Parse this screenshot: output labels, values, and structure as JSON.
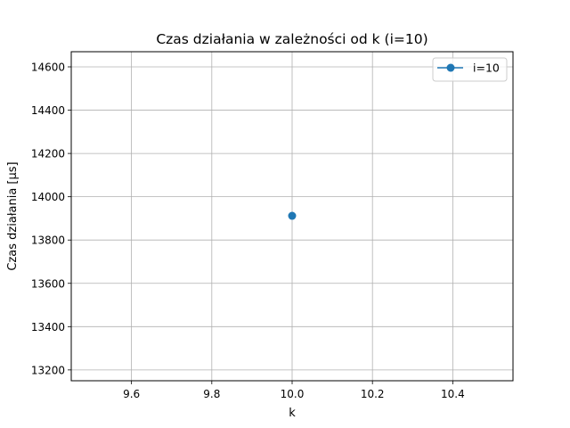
{
  "chart_data": {
    "type": "line",
    "title": "Czas działania w zależności od k (i=10)",
    "xlabel": "k",
    "ylabel": "Czas działania [µs]",
    "xlim": [
      9.45,
      10.55
    ],
    "ylim": [
      13150,
      14670
    ],
    "xticks": [
      9.6,
      9.8,
      10.0,
      10.2,
      10.4
    ],
    "xtick_labels": [
      "9.6",
      "9.8",
      "10.0",
      "10.2",
      "10.4"
    ],
    "yticks": [
      13200,
      13400,
      13600,
      13800,
      14000,
      14200,
      14400,
      14600
    ],
    "ytick_labels": [
      "13200",
      "13400",
      "13600",
      "13800",
      "14000",
      "14200",
      "14400",
      "14600"
    ],
    "grid": true,
    "legend_position": "top-right",
    "series": [
      {
        "name": "i=10",
        "color": "#1f77b4",
        "marker": "circle",
        "x": [
          10.0
        ],
        "y": [
          13912
        ]
      }
    ]
  }
}
